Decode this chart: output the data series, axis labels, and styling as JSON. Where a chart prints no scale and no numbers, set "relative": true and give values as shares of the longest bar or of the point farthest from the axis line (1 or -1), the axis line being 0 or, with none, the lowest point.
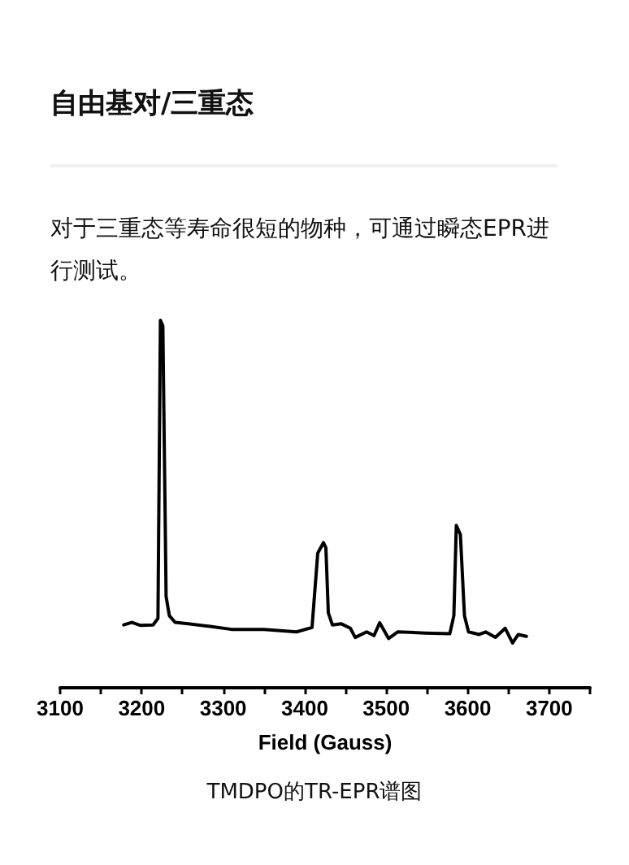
{
  "chart_data": {
    "type": "line",
    "title": "自由基对/三重态",
    "subtitle": "对于三重态等寿命很短的物种，可通过瞬态EPR进行测试。",
    "xlabel": "Field (Gauss)",
    "annotations": [
      "TMDPO的TR-EPR谱图"
    ],
    "relative": true,
    "xlim": [
      3100,
      3750
    ],
    "xticks": [
      3100,
      {
        "value": 3150,
        "label": null
      },
      3200,
      {
        "value": 3250,
        "label": null
      },
      3300,
      {
        "value": 3350,
        "label": null
      },
      3400,
      {
        "value": 3450,
        "label": null
      },
      3500,
      {
        "value": 3550,
        "label": null
      },
      3600,
      {
        "value": 3650,
        "label": null
      },
      3700,
      {
        "value": 3750,
        "label": null
      }
    ],
    "x": [
      3178,
      3188,
      3198,
      3214,
      3220,
      3223,
      3226,
      3230,
      3234,
      3241,
      3257,
      3284,
      3310,
      3350,
      3390,
      3409,
      3416,
      3423,
      3426,
      3429,
      3434,
      3445,
      3456,
      3462,
      3476,
      3485,
      3492,
      3503,
      3514,
      3548,
      3578,
      3583,
      3586,
      3591,
      3596,
      3601,
      3614,
      3622,
      3634,
      3646,
      3655,
      3662,
      3672
    ],
    "series": [
      {
        "color": "#000000",
        "values": [
          0.171,
          0.178,
          0.17,
          0.171,
          0.189,
          1.0,
          0.985,
          0.248,
          0.196,
          0.178,
          0.174,
          0.167,
          0.159,
          0.159,
          0.152,
          0.164,
          0.366,
          0.395,
          0.381,
          0.204,
          0.171,
          0.174,
          0.162,
          0.137,
          0.152,
          0.142,
          0.177,
          0.134,
          0.152,
          0.149,
          0.147,
          0.196,
          0.442,
          0.417,
          0.196,
          0.152,
          0.145,
          0.152,
          0.137,
          0.162,
          0.122,
          0.145,
          0.14
        ]
      }
    ],
    "grid": false,
    "marker": "none",
    "line_style": "solid"
  }
}
